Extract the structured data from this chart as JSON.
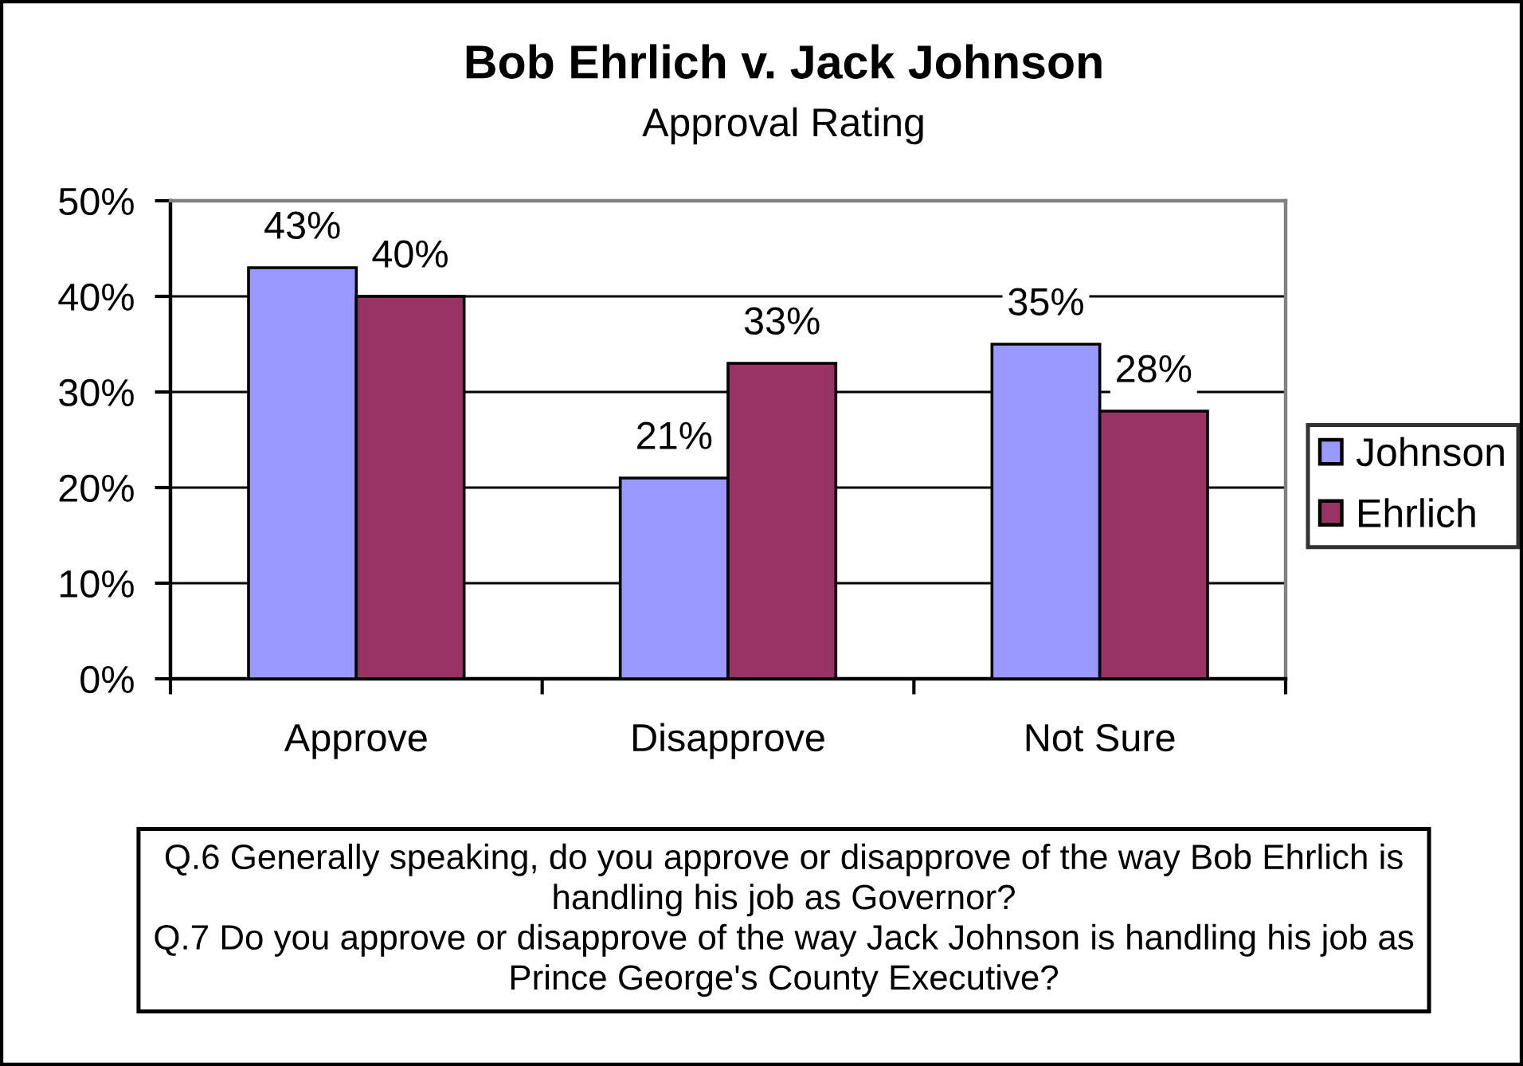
{
  "chart_data": {
    "type": "bar",
    "title": "Bob Ehrlich v. Jack Johnson",
    "subtitle": "Approval Rating",
    "categories": [
      "Approve",
      "Disapprove",
      "Not Sure"
    ],
    "series": [
      {
        "name": "Johnson",
        "color": "#9999ff",
        "values": [
          43,
          21,
          35
        ],
        "value_labels": [
          "43%",
          "21%",
          "35%"
        ]
      },
      {
        "name": "Ehrlich",
        "color": "#993366",
        "values": [
          40,
          33,
          28
        ],
        "value_labels": [
          "40%",
          "33%",
          "28%"
        ]
      }
    ],
    "ylim": [
      0,
      50
    ],
    "yticks": [
      {
        "value": 0,
        "label": "0%"
      },
      {
        "value": 10,
        "label": "10%"
      },
      {
        "value": 20,
        "label": "20%"
      },
      {
        "value": 30,
        "label": "30%"
      },
      {
        "value": 40,
        "label": "40%"
      },
      {
        "value": 50,
        "label": "50%"
      }
    ],
    "grid": "y",
    "legend": "right",
    "annotations": [
      "Q.6 Generally speaking, do you approve or disapprove of the way Bob Ehrlich is handling his job as Governor?",
      "Q.7 Do you approve or disapprove of the way Jack Johnson is handling his job as Prince George's County Executive?"
    ]
  }
}
